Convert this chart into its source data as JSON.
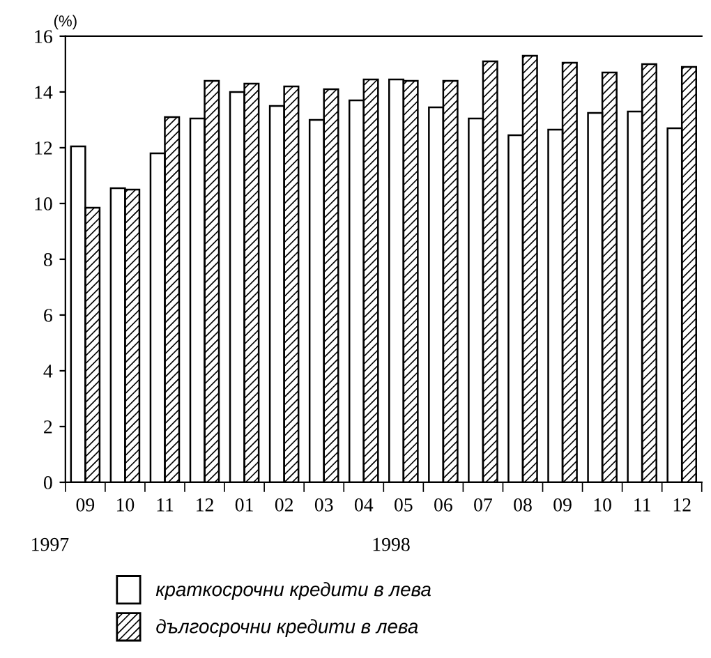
{
  "chart_data": {
    "type": "bar",
    "ylabel": "(%)",
    "categories": [
      "09",
      "10",
      "11",
      "12",
      "01",
      "02",
      "03",
      "04",
      "05",
      "06",
      "07",
      "08",
      "09",
      "10",
      "11",
      "12"
    ],
    "series": [
      {
        "name": "краткосрочни кредити в лева",
        "color": "#ffffff",
        "values": [
          12.05,
          10.55,
          11.8,
          13.05,
          14.0,
          13.5,
          13.0,
          13.7,
          14.45,
          13.45,
          13.05,
          12.45,
          12.65,
          13.25,
          13.3,
          12.7
        ]
      },
      {
        "name": "дългосрочни кредити в лева",
        "color": "#000000",
        "values": [
          9.85,
          10.5,
          13.1,
          14.4,
          14.3,
          14.2,
          14.1,
          14.45,
          14.4,
          14.4,
          15.1,
          15.3,
          15.05,
          14.7,
          15.0,
          14.9
        ]
      }
    ],
    "annotations": [
      "1997",
      "1998"
    ],
    "ylim": [
      0,
      16
    ],
    "yticks": [
      0,
      2,
      4,
      6,
      8,
      10,
      12,
      14,
      16
    ],
    "grid": false,
    "legend": "bottom"
  }
}
